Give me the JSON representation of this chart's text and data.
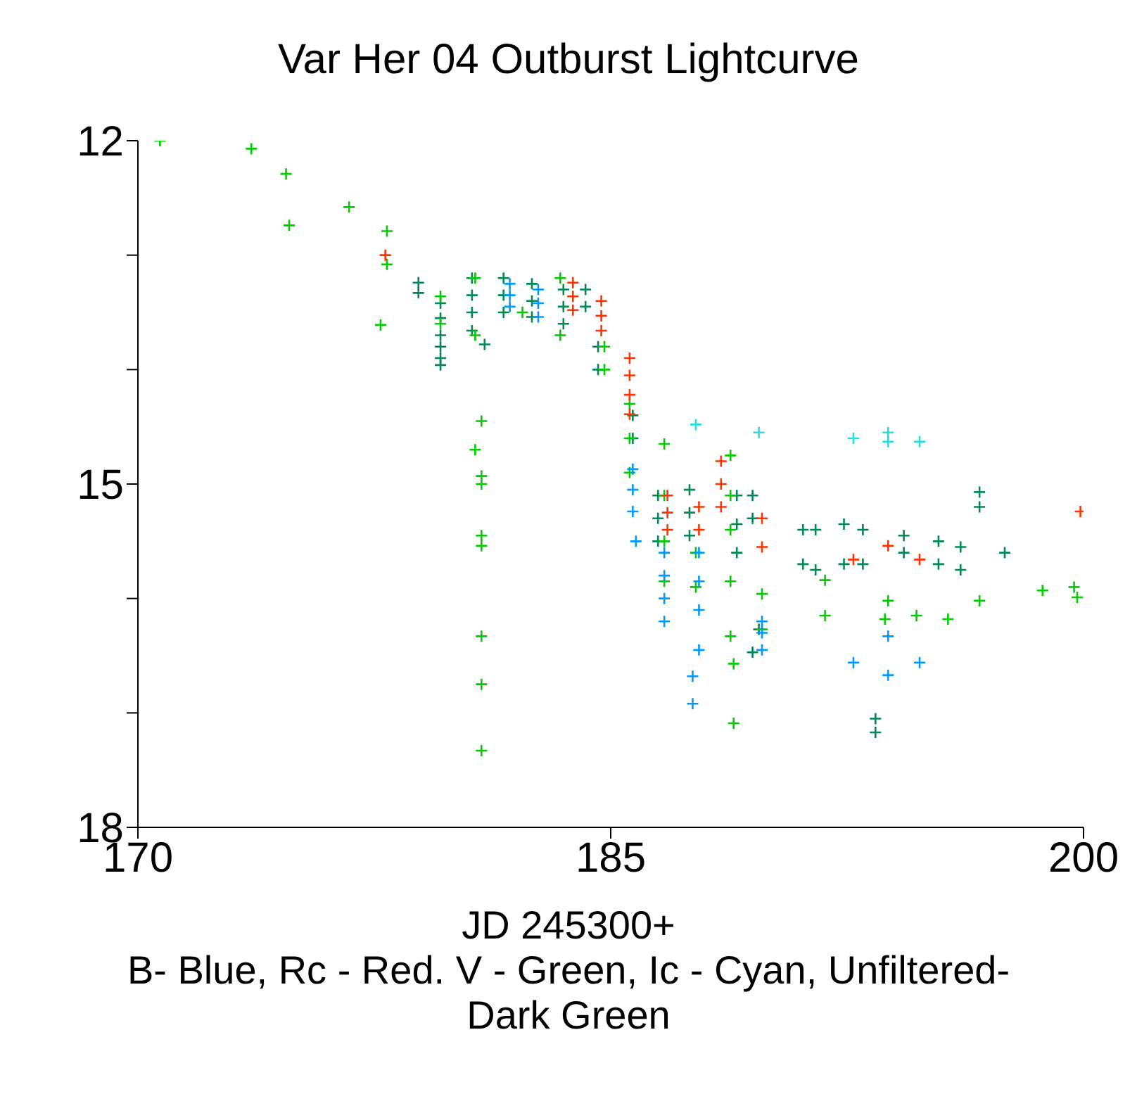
{
  "chart_data": {
    "type": "scatter",
    "title": "Var Her 04 Outburst Lightcurve",
    "xlabel": "JD 245300+",
    "annotations": [
      "B- Blue, Rc - Red. V - Green, Ic - Cyan, Unfiltered- Dark Green"
    ],
    "xlim": [
      170,
      200
    ],
    "xticks": [
      170,
      185,
      200
    ],
    "ylim": [
      18,
      12
    ],
    "yticks": [
      12,
      {
        "value": 13,
        "label": null
      },
      {
        "value": 14,
        "label": null
      },
      15,
      {
        "value": 16,
        "label": null
      },
      {
        "value": 17,
        "label": null
      },
      18
    ],
    "grid": false,
    "legend": false,
    "marker": "cross",
    "series": [
      {
        "color": "#008855",
        "x": [
          178.9,
          178.9,
          179.6,
          179.6,
          179.6,
          179.6,
          179.6,
          179.6,
          180.6,
          180.6,
          180.6,
          180.6,
          181.0,
          181.6,
          181.6,
          181.6,
          182.5,
          182.5,
          182.5,
          183.5,
          183.5,
          183.5,
          184.2,
          184.2,
          184.6,
          184.6,
          185.7,
          185.7,
          186.5,
          186.5,
          186.5,
          187.5,
          187.5,
          187.5,
          189.0,
          189.0,
          189.0,
          189.5,
          189.5,
          191.1,
          191.1,
          191.5,
          191.5,
          192.4,
          192.4,
          193.0,
          193.0,
          193.4,
          193.4,
          194.3,
          194.3,
          195.4,
          195.4,
          196.1,
          196.1,
          196.7,
          196.7,
          197.5,
          189.7,
          189.5
        ],
        "values": [
          13.24,
          13.33,
          13.42,
          13.55,
          13.7,
          13.8,
          13.9,
          13.96,
          13.2,
          13.35,
          13.5,
          13.66,
          13.78,
          13.2,
          13.35,
          13.5,
          13.25,
          13.4,
          13.54,
          13.3,
          13.45,
          13.6,
          13.3,
          13.45,
          13.8,
          14.0,
          14.4,
          14.6,
          15.1,
          15.3,
          15.5,
          15.05,
          15.25,
          15.45,
          15.1,
          15.35,
          15.6,
          15.1,
          15.3,
          15.4,
          15.7,
          15.4,
          15.75,
          15.35,
          15.7,
          15.4,
          15.7,
          17.05,
          17.17,
          15.45,
          15.6,
          15.5,
          15.7,
          15.55,
          15.75,
          15.07,
          15.2,
          15.6,
          16.27,
          16.47
        ]
      },
      {
        "color": "#00cc00",
        "x": [
          170.7,
          173.6,
          174.7,
          174.8,
          176.7,
          177.9,
          177.9,
          177.7,
          179.6,
          179.6,
          180.7,
          180.7,
          180.9,
          180.7,
          180.9,
          180.9,
          180.9,
          180.9,
          180.9,
          180.9,
          180.9,
          182.2,
          183.4,
          183.4,
          184.8,
          184.8,
          185.6,
          185.6,
          185.6,
          186.7,
          186.7,
          186.7,
          186.7,
          187.7,
          187.7,
          188.8,
          188.8,
          188.8,
          188.8,
          188.8,
          188.9,
          188.9,
          189.8,
          189.8,
          191.8,
          191.8,
          193.7,
          193.8,
          194.7,
          195.7,
          196.7,
          198.7,
          199.7,
          199.8
        ],
        "values": [
          12.0,
          12.07,
          12.29,
          12.74,
          12.58,
          12.79,
          13.08,
          13.61,
          13.36,
          13.6,
          13.2,
          13.7,
          14.45,
          14.7,
          14.93,
          15.45,
          15.54,
          16.33,
          16.75,
          17.33,
          15.0,
          13.5,
          13.2,
          13.7,
          13.8,
          14.0,
          14.3,
          14.6,
          14.9,
          14.65,
          15.1,
          15.5,
          15.85,
          15.6,
          15.9,
          14.75,
          15.1,
          15.4,
          15.85,
          16.33,
          16.57,
          17.09,
          15.96,
          16.27,
          15.84,
          16.15,
          16.18,
          16.02,
          16.15,
          16.18,
          16.02,
          15.93,
          15.9,
          15.99
        ]
      },
      {
        "color": "#0099ff",
        "x": [
          181.8,
          181.8,
          181.8,
          182.7,
          182.7,
          182.7,
          185.7,
          185.7,
          185.7,
          185.8,
          186.7,
          186.7,
          186.7,
          186.7,
          187.8,
          187.8,
          187.8,
          187.8,
          187.6,
          187.6,
          189.8,
          189.8,
          189.8,
          192.7,
          193.8,
          193.8,
          194.8
        ],
        "values": [
          13.25,
          13.35,
          13.45,
          13.3,
          13.42,
          13.54,
          14.87,
          15.05,
          15.24,
          15.5,
          15.6,
          15.8,
          16.0,
          16.2,
          15.6,
          15.85,
          16.1,
          16.45,
          16.68,
          16.92,
          16.2,
          16.3,
          16.45,
          16.56,
          16.67,
          16.33,
          16.56
        ]
      },
      {
        "color": "#ff3300",
        "x": [
          177.85,
          183.8,
          183.8,
          183.8,
          184.7,
          184.7,
          184.7,
          185.6,
          185.6,
          185.6,
          185.6,
          186.8,
          186.8,
          186.8,
          187.8,
          187.8,
          188.5,
          188.5,
          188.5,
          189.8,
          189.8,
          192.7,
          193.8,
          194.8,
          199.9
        ],
        "values": [
          13.0,
          13.24,
          13.36,
          13.48,
          13.4,
          13.53,
          13.66,
          13.9,
          14.05,
          14.22,
          14.39,
          15.1,
          15.25,
          15.4,
          15.2,
          15.4,
          14.8,
          15.0,
          15.2,
          15.3,
          15.55,
          15.66,
          15.54,
          15.66,
          15.24
        ]
      },
      {
        "color": "#22e0e0",
        "x": [
          187.7,
          189.7,
          192.7,
          193.8,
          193.8,
          194.8
        ],
        "values": [
          14.48,
          14.55,
          14.6,
          14.55,
          14.63,
          14.63
        ]
      }
    ]
  }
}
